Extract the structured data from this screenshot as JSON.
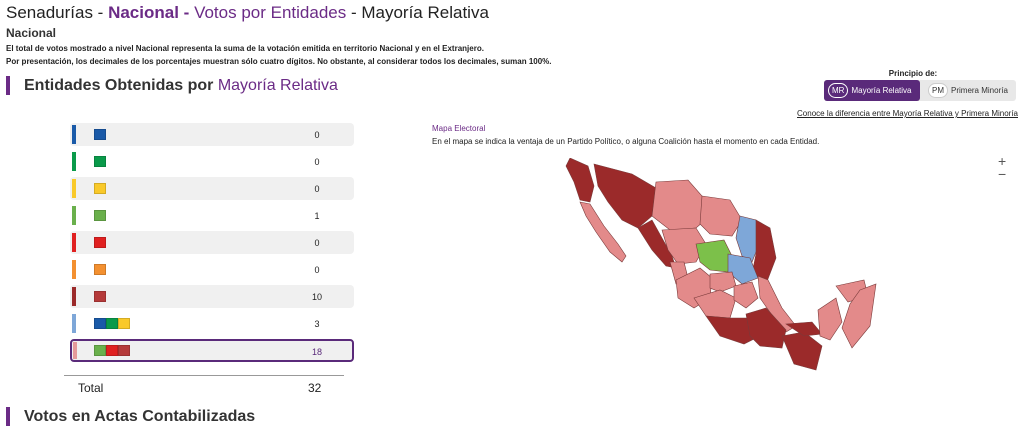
{
  "breadcrumb": {
    "part1": "Senadurías -",
    "part2": "Nacional -",
    "part3": "Votos por Entidades",
    "part4": "- Mayoría Relativa"
  },
  "section": "Nacional",
  "notes": [
    "El total de votos mostrado a nivel Nacional representa la suma de la votación emitida en territorio Nacional y en el Extranjero.",
    "Por presentación, los decimales de los porcentajes muestran sólo cuatro dígitos. No obstante, al considerar todos los decimales, suman 100%."
  ],
  "heading": {
    "main": "Entidades Obtenidas por",
    "accent": "Mayoría Relativa"
  },
  "principio": {
    "label": "Principio de:",
    "mr_abbr": "MR",
    "mr_label": "Mayoría Relativa",
    "pm_abbr": "PM",
    "pm_label": "Primera Minoría"
  },
  "link": "Conoce la diferencia entre Mayoría Relativa y Primera Minoría",
  "rows": [
    {
      "bar": "#1a5aa8",
      "logos": [
        {
          "name": "pan-logo",
          "color": "#1a5aa8"
        }
      ],
      "value": "0"
    },
    {
      "bar": "#0a9a4a",
      "logos": [
        {
          "name": "pri-logo",
          "color": "#0a9a4a"
        }
      ],
      "value": "0"
    },
    {
      "bar": "#f9c92a",
      "logos": [
        {
          "name": "prd-logo",
          "color": "#f9c92a"
        }
      ],
      "value": "0"
    },
    {
      "bar": "#6ab04c",
      "logos": [
        {
          "name": "pvem-logo",
          "color": "#6ab04c"
        }
      ],
      "value": "1"
    },
    {
      "bar": "#e02020",
      "logos": [
        {
          "name": "pt-logo",
          "color": "#e02020"
        }
      ],
      "value": "0"
    },
    {
      "bar": "#f39030",
      "logos": [
        {
          "name": "mc-logo",
          "color": "#f39030"
        }
      ],
      "value": "0"
    },
    {
      "bar": "#9b2a2a",
      "logos": [
        {
          "name": "morena-logo",
          "color": "#b53a3a"
        }
      ],
      "value": "10"
    },
    {
      "bar": "#7ea7d8",
      "logos": [
        {
          "name": "pan-logo",
          "color": "#1a5aa8"
        },
        {
          "name": "pri-logo",
          "color": "#0a9a4a"
        },
        {
          "name": "prd-logo",
          "color": "#f9c92a"
        }
      ],
      "value": "3"
    },
    {
      "bar": "#e59a9a",
      "logos": [
        {
          "name": "pvem-logo",
          "color": "#6ab04c"
        },
        {
          "name": "pt-logo",
          "color": "#e02020"
        },
        {
          "name": "morena-logo",
          "color": "#b53a3a"
        }
      ],
      "value": "18"
    }
  ],
  "total": {
    "label": "Total",
    "value": "32"
  },
  "map": {
    "title": "Mapa Electoral",
    "subtitle": "En el mapa se indica la ventaja de un Partido Político, o alguna Coalición hasta el momento en cada Entidad.",
    "zoom_in": "+",
    "zoom_out": "−",
    "colors": {
      "morena": "#9b2a2a",
      "coalition": "#e38a8a",
      "panpriprd": "#7ea7d8",
      "pvem": "#7cc04a"
    }
  },
  "section2": "Votos en Actas Contabilizadas"
}
